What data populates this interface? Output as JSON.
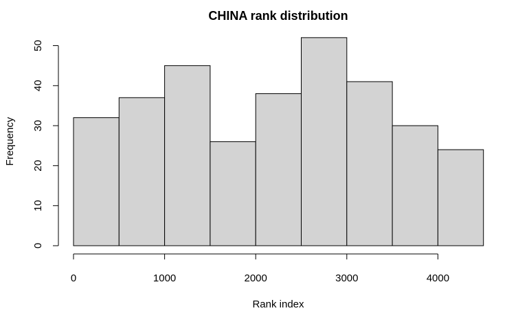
{
  "chart_data": {
    "type": "bar",
    "title": "CHINA rank  distribution",
    "xlabel": "Rank index",
    "ylabel": "Frequency",
    "bins": [
      {
        "start": 0,
        "end": 500,
        "value": 32
      },
      {
        "start": 500,
        "end": 1000,
        "value": 37
      },
      {
        "start": 1000,
        "end": 1500,
        "value": 45
      },
      {
        "start": 1500,
        "end": 2000,
        "value": 26
      },
      {
        "start": 2000,
        "end": 2500,
        "value": 38
      },
      {
        "start": 2500,
        "end": 3000,
        "value": 52
      },
      {
        "start": 3000,
        "end": 3500,
        "value": 41
      },
      {
        "start": 3500,
        "end": 4000,
        "value": 30
      },
      {
        "start": 4000,
        "end": 4500,
        "value": 24
      }
    ],
    "xlim": [
      0,
      4500
    ],
    "ylim": [
      0,
      52
    ],
    "x_ticks": [
      0,
      1000,
      2000,
      3000,
      4000
    ],
    "y_ticks": [
      0,
      10,
      20,
      30,
      40,
      50
    ],
    "grid": false,
    "bar_color": "#d3d3d3",
    "edge_color": "#000000"
  }
}
